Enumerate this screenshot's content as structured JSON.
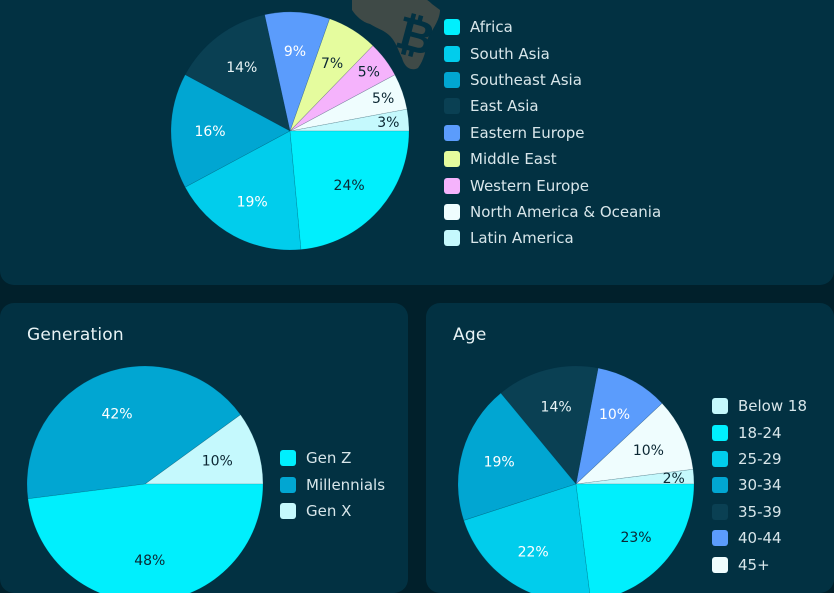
{
  "chart_data": [
    {
      "type": "pie",
      "title": "",
      "start_angle_deg": 0,
      "direction": "counterclockwise",
      "categories": [
        "Latin America",
        "North America & Oceania",
        "Western Europe",
        "Middle East",
        "Eastern Europe",
        "East Asia",
        "Southeast Asia",
        "South Asia",
        "Africa"
      ],
      "values": [
        3,
        5,
        5,
        7,
        9,
        14,
        16,
        19,
        24
      ],
      "labels": [
        "3%",
        "5%",
        "5%",
        "7%",
        "9%",
        "14%",
        "16%",
        "19%",
        "24%"
      ],
      "colors": [
        "#c5f9fd",
        "#effdfe",
        "#f5b3fc",
        "#e5fc9e",
        "#5b9cfc",
        "#0a4053",
        "#01a6d2",
        "#01cdec",
        "#00effd"
      ],
      "label_colors": [
        "#0b2733",
        "#0b2733",
        "#0b2733",
        "#0b2733",
        "#ffffff",
        "#e8f3f5",
        "#ffffff",
        "#ffffff",
        "#0b2733"
      ],
      "legend_order": [
        "Africa",
        "South Asia",
        "Southeast Asia",
        "East Asia",
        "Eastern Europe",
        "Middle East",
        "Western Europe",
        "North America & Oceania",
        "Latin America"
      ],
      "legend_position": "right"
    },
    {
      "type": "pie",
      "title": "Generation",
      "start_angle_deg": 0,
      "direction": "counterclockwise",
      "categories": [
        "Gen X",
        "Millennials",
        "Gen Z"
      ],
      "values": [
        10,
        42,
        48
      ],
      "labels": [
        "10%",
        "42%",
        "48%"
      ],
      "colors": [
        "#c5f9fd",
        "#01a6d2",
        "#00effd"
      ],
      "label_colors": [
        "#0b2733",
        "#ffffff",
        "#0b2733"
      ],
      "legend_order": [
        "Gen Z",
        "Millennials",
        "Gen X"
      ],
      "legend_position": "right"
    },
    {
      "type": "pie",
      "title": "Age",
      "start_angle_deg": 0,
      "direction": "counterclockwise",
      "categories": [
        "Below 18",
        "45+",
        "40-44",
        "35-39",
        "30-34",
        "25-29",
        "18-24"
      ],
      "values": [
        2,
        10,
        10,
        14,
        19,
        22,
        23
      ],
      "labels": [
        "2%",
        "10%",
        "10%",
        "14%",
        "19%",
        "22%",
        "23%"
      ],
      "colors": [
        "#c5f9fd",
        "#effdfe",
        "#5b9cfc",
        "#0a4053",
        "#01a6d2",
        "#01cdec",
        "#00effd"
      ],
      "label_colors": [
        "#0b2733",
        "#0b2733",
        "#ffffff",
        "#e8f3f5",
        "#ffffff",
        "#ffffff",
        "#0b2733"
      ],
      "legend_order": [
        "Below 18",
        "18-24",
        "25-29",
        "30-34",
        "35-39",
        "40-44",
        "45+"
      ],
      "legend_position": "right"
    }
  ],
  "panels": {
    "region": {
      "title": ""
    },
    "generation": {
      "title": "Generation"
    },
    "age": {
      "title": "Age"
    }
  },
  "decoration": {
    "icon": "africa-bitcoin-icon",
    "map_color": "#3f4a47",
    "glyph": "₿"
  },
  "theme": {
    "background": "#01202b",
    "panel": "#023142",
    "text": "#d8e6ea"
  }
}
